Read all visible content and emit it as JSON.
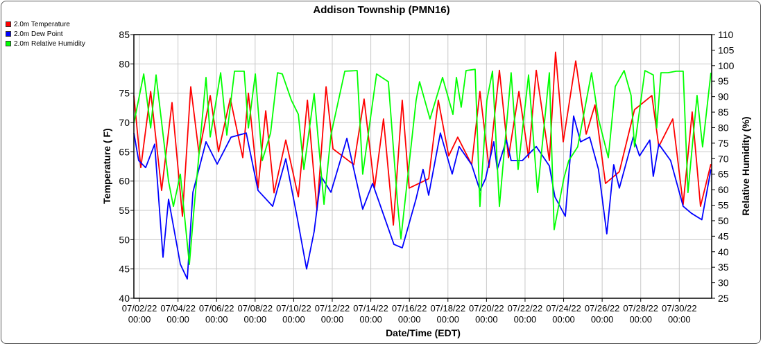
{
  "chart_data": {
    "type": "line",
    "title": "Addison Township (PMN16)",
    "xlabel": "Date/Time (EDT)",
    "ylabel": "Temperature ( F)",
    "y2label": "Relative Humidity (%)",
    "x_units": "days since 07/02/22 00:00",
    "xlim": [
      -0.29,
      29.68
    ],
    "ylim": [
      40,
      85
    ],
    "y2lim": [
      25,
      110
    ],
    "yticks": [
      40,
      45,
      50,
      55,
      60,
      65,
      70,
      75,
      80,
      85
    ],
    "y2ticks": [
      25,
      30,
      35,
      40,
      45,
      50,
      55,
      60,
      65,
      70,
      75,
      80,
      85,
      90,
      95,
      100,
      105,
      110
    ],
    "xticks": [
      {
        "x": 0,
        "date": "07/02/22",
        "time": "00:00"
      },
      {
        "x": 2,
        "date": "07/04/22",
        "time": "00:00"
      },
      {
        "x": 4,
        "date": "07/06/22",
        "time": "00:00"
      },
      {
        "x": 6,
        "date": "07/08/22",
        "time": "00:00"
      },
      {
        "x": 8,
        "date": "07/10/22",
        "time": "00:00"
      },
      {
        "x": 10,
        "date": "07/12/22",
        "time": "00:00"
      },
      {
        "x": 12,
        "date": "07/14/22",
        "time": "00:00"
      },
      {
        "x": 14,
        "date": "07/16/22",
        "time": "00:00"
      },
      {
        "x": 16,
        "date": "07/18/22",
        "time": "00:00"
      },
      {
        "x": 18,
        "date": "07/20/22",
        "time": "00:00"
      },
      {
        "x": 20,
        "date": "07/22/22",
        "time": "00:00"
      },
      {
        "x": 22,
        "date": "07/24/22",
        "time": "00:00"
      },
      {
        "x": 24,
        "date": "07/26/22",
        "time": "00:00"
      },
      {
        "x": 26,
        "date": "07/28/22",
        "time": "00:00"
      },
      {
        "x": 28,
        "date": "07/30/22",
        "time": "00:00"
      }
    ],
    "grid": true,
    "legend_position": "top-left-outside",
    "series": [
      {
        "name": "2.0m Temperature",
        "color": "#ff0000",
        "axis": "left",
        "points": [
          [
            -0.29,
            74.6
          ],
          [
            0.07,
            62.3
          ],
          [
            0.58,
            75.3
          ],
          [
            1.15,
            58.4
          ],
          [
            1.69,
            73.4
          ],
          [
            2.23,
            54
          ],
          [
            2.66,
            76.1
          ],
          [
            3.09,
            64.7
          ],
          [
            3.67,
            74.6
          ],
          [
            4.1,
            65
          ],
          [
            4.71,
            74.1
          ],
          [
            5.36,
            64
          ],
          [
            5.65,
            75
          ],
          [
            6.15,
            58.8
          ],
          [
            6.55,
            72
          ],
          [
            6.98,
            58
          ],
          [
            7.59,
            67
          ],
          [
            8.24,
            57.3
          ],
          [
            8.71,
            73.8
          ],
          [
            9.21,
            55
          ],
          [
            9.68,
            76.1
          ],
          [
            10.04,
            65.5
          ],
          [
            11.12,
            62.8
          ],
          [
            11.65,
            74
          ],
          [
            12.19,
            58.8
          ],
          [
            12.66,
            70.6
          ],
          [
            13.17,
            52.5
          ],
          [
            13.63,
            73.8
          ],
          [
            13.99,
            58.8
          ],
          [
            15.0,
            60.4
          ],
          [
            15.5,
            73.8
          ],
          [
            16.04,
            64.3
          ],
          [
            16.51,
            67.5
          ],
          [
            17.23,
            62.8
          ],
          [
            17.66,
            75.3
          ],
          [
            18.13,
            62.3
          ],
          [
            18.67,
            78.9
          ],
          [
            19.14,
            64
          ],
          [
            19.68,
            75.3
          ],
          [
            20.18,
            64
          ],
          [
            20.58,
            78.9
          ],
          [
            21.26,
            63.5
          ],
          [
            21.58,
            82
          ],
          [
            21.98,
            66.7
          ],
          [
            22.63,
            80.5
          ],
          [
            23.17,
            68
          ],
          [
            23.63,
            73
          ],
          [
            24.17,
            59.6
          ],
          [
            24.89,
            61.6
          ],
          [
            25.68,
            72.2
          ],
          [
            26.58,
            74.6
          ],
          [
            26.94,
            65.9
          ],
          [
            27.66,
            70.6
          ],
          [
            28.2,
            56
          ],
          [
            28.67,
            71.8
          ],
          [
            29.1,
            55.7
          ],
          [
            29.64,
            62.9
          ]
        ]
      },
      {
        "name": "2.0m Dew Point",
        "color": "#0000ff",
        "axis": "left",
        "points": [
          [
            -0.29,
            68.2
          ],
          [
            -0.04,
            63.5
          ],
          [
            0.32,
            62.3
          ],
          [
            0.79,
            66.3
          ],
          [
            1.22,
            47
          ],
          [
            1.51,
            56.9
          ],
          [
            2.12,
            45.8
          ],
          [
            2.48,
            43.3
          ],
          [
            2.77,
            58.1
          ],
          [
            3.45,
            66.7
          ],
          [
            4.03,
            62.9
          ],
          [
            4.75,
            67.5
          ],
          [
            5.54,
            68.2
          ],
          [
            6.15,
            58.4
          ],
          [
            6.91,
            55.7
          ],
          [
            7.59,
            63.8
          ],
          [
            8.17,
            54
          ],
          [
            8.67,
            45
          ],
          [
            9.06,
            51.4
          ],
          [
            9.42,
            60.8
          ],
          [
            9.93,
            58.1
          ],
          [
            10.76,
            67.3
          ],
          [
            11.58,
            55.2
          ],
          [
            12.09,
            59.6
          ],
          [
            13.2,
            49.2
          ],
          [
            13.63,
            48.6
          ],
          [
            14.35,
            57
          ],
          [
            14.71,
            62
          ],
          [
            15.0,
            57.6
          ],
          [
            15.61,
            68.2
          ],
          [
            16.22,
            61.2
          ],
          [
            16.58,
            65.9
          ],
          [
            17.23,
            62.8
          ],
          [
            17.66,
            58.4
          ],
          [
            17.95,
            60.4
          ],
          [
            18.38,
            66.7
          ],
          [
            18.56,
            62
          ],
          [
            19.03,
            67
          ],
          [
            19.28,
            63.5
          ],
          [
            19.86,
            63.5
          ],
          [
            20.58,
            65.9
          ],
          [
            21.26,
            62.6
          ],
          [
            21.55,
            57.3
          ],
          [
            22.09,
            54
          ],
          [
            22.52,
            71.1
          ],
          [
            22.88,
            66.7
          ],
          [
            23.35,
            67.5
          ],
          [
            23.81,
            62
          ],
          [
            24.24,
            51
          ],
          [
            24.6,
            62.8
          ],
          [
            24.89,
            58.8
          ],
          [
            25.61,
            67.5
          ],
          [
            25.94,
            64.3
          ],
          [
            26.47,
            67
          ],
          [
            26.65,
            60.8
          ],
          [
            26.94,
            66.3
          ],
          [
            27.55,
            63.5
          ],
          [
            28.2,
            55.7
          ],
          [
            28.63,
            54.5
          ],
          [
            29.17,
            53.4
          ],
          [
            29.64,
            62
          ]
        ]
      },
      {
        "name": "2.0m Relative Humidity",
        "color": "#00ff00",
        "axis": "right",
        "points": [
          [
            -0.29,
            81.4
          ],
          [
            0.22,
            97.3
          ],
          [
            0.58,
            79.9
          ],
          [
            0.86,
            97
          ],
          [
            1.51,
            62.7
          ],
          [
            1.76,
            54.6
          ],
          [
            2.12,
            65
          ],
          [
            2.59,
            35.9
          ],
          [
            2.84,
            54.6
          ],
          [
            3.45,
            96.2
          ],
          [
            3.67,
            77
          ],
          [
            4.21,
            97.7
          ],
          [
            4.53,
            77.6
          ],
          [
            4.93,
            98.2
          ],
          [
            5.43,
            98.2
          ],
          [
            5.65,
            79.9
          ],
          [
            6.01,
            97.3
          ],
          [
            6.37,
            69.4
          ],
          [
            6.8,
            78.3
          ],
          [
            7.16,
            97.7
          ],
          [
            7.41,
            97.3
          ],
          [
            7.88,
            88.8
          ],
          [
            8.24,
            84.3
          ],
          [
            8.53,
            66.5
          ],
          [
            9.06,
            91
          ],
          [
            9.57,
            55.3
          ],
          [
            9.93,
            77.6
          ],
          [
            10.65,
            98.2
          ],
          [
            11.29,
            98.4
          ],
          [
            11.58,
            65
          ],
          [
            12.3,
            97.3
          ],
          [
            12.91,
            94.8
          ],
          [
            13.38,
            56
          ],
          [
            13.56,
            44.2
          ],
          [
            14.35,
            88.8
          ],
          [
            14.53,
            94.8
          ],
          [
            15.07,
            82.8
          ],
          [
            15.72,
            96.2
          ],
          [
            16.26,
            84.3
          ],
          [
            16.44,
            96.2
          ],
          [
            16.69,
            86.6
          ],
          [
            16.94,
            98.4
          ],
          [
            17.41,
            98.8
          ],
          [
            17.66,
            54.6
          ],
          [
            18.02,
            88.8
          ],
          [
            18.31,
            98.2
          ],
          [
            18.67,
            54.6
          ],
          [
            19.28,
            97.7
          ],
          [
            19.64,
            66.5
          ],
          [
            20.18,
            97
          ],
          [
            20.65,
            59.1
          ],
          [
            21.26,
            97.7
          ],
          [
            21.51,
            47.1
          ],
          [
            22.01,
            63.6
          ],
          [
            22.27,
            69.4
          ],
          [
            22.73,
            73.8
          ],
          [
            23.45,
            97.7
          ],
          [
            23.81,
            82.8
          ],
          [
            24.32,
            70.3
          ],
          [
            24.68,
            93.3
          ],
          [
            25.14,
            98.4
          ],
          [
            25.5,
            90.4
          ],
          [
            25.68,
            73.8
          ],
          [
            26.22,
            98.4
          ],
          [
            26.65,
            97
          ],
          [
            26.83,
            79.9
          ],
          [
            27.05,
            97.7
          ],
          [
            27.41,
            97.7
          ],
          [
            27.84,
            98.2
          ],
          [
            28.2,
            98.2
          ],
          [
            28.45,
            59.1
          ],
          [
            28.92,
            90.4
          ],
          [
            29.21,
            73.8
          ],
          [
            29.64,
            97.7
          ]
        ]
      }
    ]
  }
}
